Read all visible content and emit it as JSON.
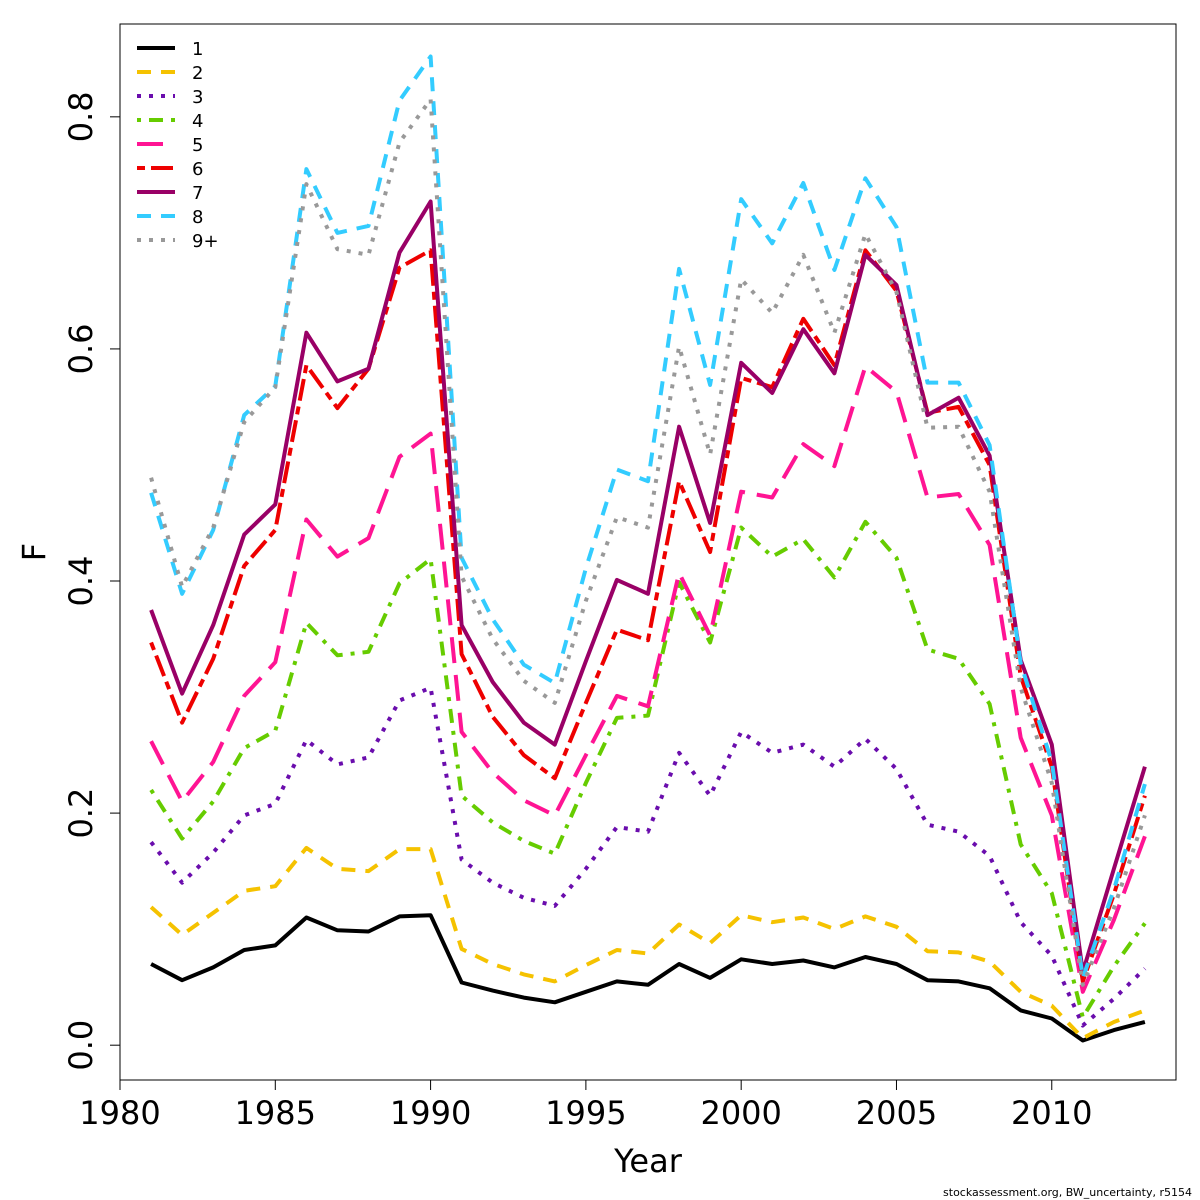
{
  "footer_note": "stockassessment.org, BW_uncertainty, r5154",
  "chart_data": {
    "type": "line",
    "title": "",
    "xlabel": "Year",
    "ylabel": "F",
    "xlim": [
      1980,
      2014
    ],
    "ylim": [
      -0.03,
      0.88
    ],
    "x_ticks": [
      1980,
      1985,
      1990,
      1995,
      2000,
      2005,
      2010
    ],
    "y_ticks": [
      0.0,
      0.2,
      0.4,
      0.6,
      0.8
    ],
    "y_tick_labels": [
      "0.0",
      "0.2",
      "0.4",
      "0.6",
      "0.8"
    ],
    "grid": false,
    "legend_position": "top-left",
    "x": [
      1981,
      1982,
      1983,
      1984,
      1985,
      1986,
      1987,
      1988,
      1989,
      1990,
      1991,
      1992,
      1993,
      1994,
      1995,
      1996,
      1997,
      1998,
      1999,
      2000,
      2001,
      2002,
      2003,
      2004,
      2005,
      2006,
      2007,
      2008,
      2009,
      2010,
      2011,
      2012,
      2013
    ],
    "series": [
      {
        "name": "1",
        "color": "#000000",
        "dash": "solid",
        "values": [
          0.07,
          0.056,
          0.067,
          0.082,
          0.086,
          0.11,
          0.099,
          0.098,
          0.111,
          0.112,
          0.054,
          0.047,
          0.041,
          0.037,
          0.046,
          0.055,
          0.052,
          0.07,
          0.058,
          0.074,
          0.07,
          0.073,
          0.067,
          0.076,
          0.07,
          0.056,
          0.055,
          0.049,
          0.03,
          0.023,
          0.004,
          0.013,
          0.02
        ]
      },
      {
        "name": "2",
        "color": "#F5C200",
        "dash": "dashed",
        "values": [
          0.119,
          0.095,
          0.114,
          0.133,
          0.137,
          0.17,
          0.152,
          0.15,
          0.169,
          0.169,
          0.083,
          0.07,
          0.061,
          0.055,
          0.069,
          0.082,
          0.079,
          0.104,
          0.088,
          0.112,
          0.106,
          0.11,
          0.1,
          0.111,
          0.102,
          0.081,
          0.08,
          0.072,
          0.046,
          0.034,
          0.006,
          0.02,
          0.03
        ]
      },
      {
        "name": "3",
        "color": "#6A0DAD",
        "dash": "dotted",
        "values": [
          0.175,
          0.14,
          0.166,
          0.198,
          0.208,
          0.263,
          0.242,
          0.248,
          0.297,
          0.308,
          0.16,
          0.14,
          0.127,
          0.12,
          0.152,
          0.188,
          0.184,
          0.252,
          0.215,
          0.27,
          0.252,
          0.259,
          0.24,
          0.264,
          0.238,
          0.19,
          0.184,
          0.163,
          0.106,
          0.077,
          0.017,
          0.04,
          0.066
        ]
      },
      {
        "name": "4",
        "color": "#66CC00",
        "dash": "dotdash",
        "values": [
          0.22,
          0.178,
          0.21,
          0.256,
          0.271,
          0.364,
          0.336,
          0.339,
          0.398,
          0.419,
          0.215,
          0.192,
          0.176,
          0.165,
          0.226,
          0.282,
          0.284,
          0.399,
          0.347,
          0.446,
          0.421,
          0.436,
          0.403,
          0.451,
          0.42,
          0.341,
          0.333,
          0.294,
          0.173,
          0.131,
          0.024,
          0.068,
          0.105
        ]
      },
      {
        "name": "5",
        "color": "#FF1493",
        "dash": "longdash",
        "values": [
          0.262,
          0.21,
          0.244,
          0.301,
          0.33,
          0.453,
          0.421,
          0.437,
          0.507,
          0.527,
          0.27,
          0.235,
          0.211,
          0.198,
          0.25,
          0.301,
          0.292,
          0.407,
          0.353,
          0.477,
          0.472,
          0.518,
          0.499,
          0.585,
          0.563,
          0.472,
          0.475,
          0.431,
          0.265,
          0.198,
          0.046,
          0.108,
          0.18
        ]
      },
      {
        "name": "6",
        "color": "#EE0000",
        "dash": "twodash",
        "values": [
          0.347,
          0.278,
          0.333,
          0.413,
          0.444,
          0.586,
          0.549,
          0.583,
          0.67,
          0.685,
          0.337,
          0.283,
          0.25,
          0.23,
          0.295,
          0.358,
          0.349,
          0.486,
          0.425,
          0.575,
          0.567,
          0.626,
          0.586,
          0.685,
          0.65,
          0.545,
          0.55,
          0.5,
          0.318,
          0.24,
          0.055,
          0.13,
          0.215
        ]
      },
      {
        "name": "7",
        "color": "#990066",
        "dash": "solid",
        "values": [
          0.375,
          0.303,
          0.362,
          0.44,
          0.466,
          0.614,
          0.572,
          0.583,
          0.683,
          0.727,
          0.362,
          0.313,
          0.278,
          0.259,
          0.331,
          0.401,
          0.389,
          0.533,
          0.45,
          0.588,
          0.562,
          0.617,
          0.579,
          0.681,
          0.655,
          0.543,
          0.558,
          0.508,
          0.332,
          0.259,
          0.063,
          0.152,
          0.24
        ]
      },
      {
        "name": "8",
        "color": "#33CCFF",
        "dash": "dashed",
        "values": [
          0.476,
          0.389,
          0.444,
          0.543,
          0.568,
          0.755,
          0.7,
          0.706,
          0.814,
          0.852,
          0.42,
          0.367,
          0.328,
          0.312,
          0.411,
          0.496,
          0.486,
          0.669,
          0.569,
          0.729,
          0.691,
          0.743,
          0.668,
          0.747,
          0.705,
          0.571,
          0.571,
          0.517,
          0.329,
          0.244,
          0.058,
          0.134,
          0.225
        ]
      },
      {
        "name": "9+",
        "color": "#999999",
        "dash": "dotted",
        "values": [
          0.489,
          0.395,
          0.446,
          0.537,
          0.567,
          0.742,
          0.686,
          0.681,
          0.778,
          0.815,
          0.404,
          0.35,
          0.314,
          0.295,
          0.383,
          0.455,
          0.446,
          0.602,
          0.509,
          0.66,
          0.631,
          0.681,
          0.614,
          0.699,
          0.649,
          0.532,
          0.533,
          0.477,
          0.308,
          0.226,
          0.052,
          0.118,
          0.198
        ]
      }
    ]
  }
}
